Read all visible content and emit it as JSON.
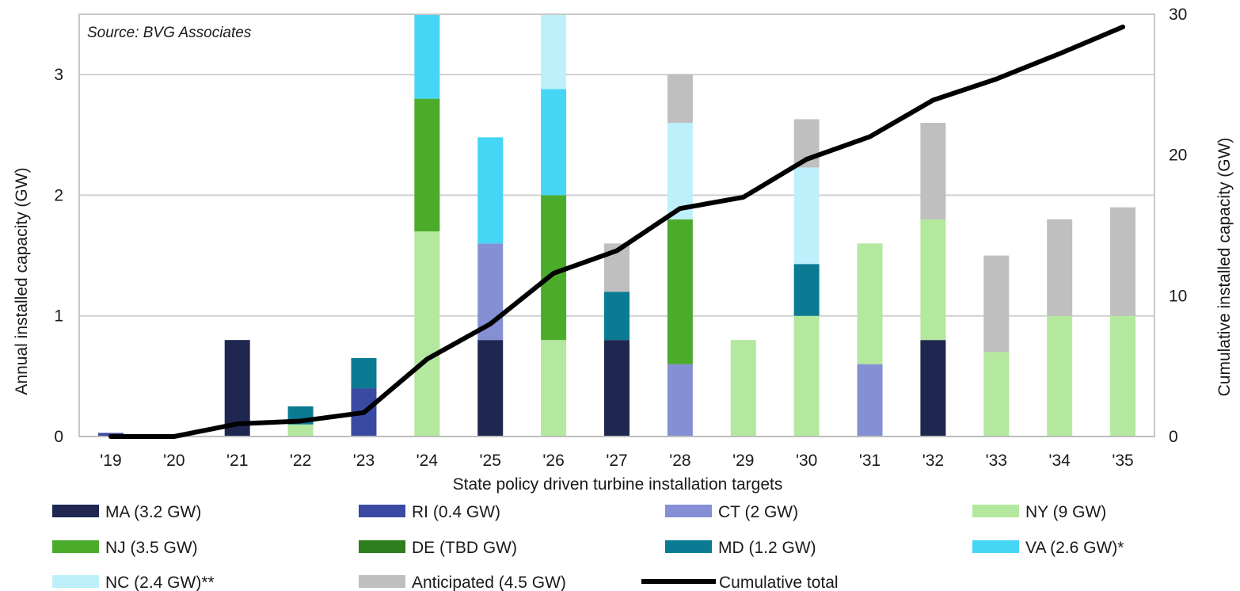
{
  "chart_data": {
    "type": "bar",
    "stacked": true,
    "source_note": "Source: BVG Associates",
    "xlabel": "State policy driven turbine installation  targets",
    "ylabel": "Annual installed capacity (GW)",
    "y2label": "Cumulative  installed  capacity (GW)",
    "ylim": [
      0,
      3.5
    ],
    "y_ticks": [
      "0",
      "1",
      "2",
      "3"
    ],
    "y2lim": [
      0,
      30
    ],
    "y2_ticks": [
      "0",
      "10",
      "20",
      "30"
    ],
    "grid": true,
    "categories": [
      "'19",
      "'20",
      "'21",
      "'22",
      "'23",
      "'24",
      "'25",
      "'26",
      "'27",
      "'28",
      "'29",
      "'30",
      "'31",
      "'32",
      "'33",
      "'34",
      "'35"
    ],
    "series": [
      {
        "name": "MA (3.2 GW)",
        "color": "#1f2750",
        "values": [
          0,
          0,
          0.8,
          0,
          0,
          0,
          0.8,
          0,
          0.8,
          0,
          0,
          0,
          0,
          0.8,
          0,
          0,
          0
        ]
      },
      {
        "name": "RI (0.4 GW)",
        "color": "#3a4aa3",
        "values": [
          0.03,
          0,
          0,
          0,
          0.4,
          0,
          0,
          0,
          0,
          0,
          0,
          0,
          0,
          0,
          0,
          0,
          0
        ]
      },
      {
        "name": "CT (2 GW)",
        "color": "#8490d3",
        "values": [
          0,
          0,
          0,
          0,
          0,
          0,
          0.8,
          0,
          0,
          0.6,
          0,
          0,
          0.6,
          0,
          0,
          0,
          0
        ]
      },
      {
        "name": "NY (9 GW)",
        "color": "#b3e89e",
        "values": [
          0,
          0,
          0,
          0.1,
          0,
          1.7,
          0,
          0.8,
          0,
          0,
          0.8,
          1.0,
          1.0,
          1.0,
          0.7,
          1.0,
          1.0
        ]
      },
      {
        "name": "NJ (3.5 GW)",
        "color": "#4bab2b",
        "values": [
          0,
          0,
          0,
          0,
          0,
          1.1,
          0,
          1.2,
          0,
          1.2,
          0,
          0,
          0,
          0,
          0,
          0,
          0
        ]
      },
      {
        "name": "DE (TBD GW)",
        "color": "#2e7d1e",
        "values": [
          0,
          0,
          0,
          0,
          0,
          0,
          0,
          0,
          0,
          0,
          0,
          0,
          0,
          0,
          0,
          0,
          0
        ]
      },
      {
        "name": "MD (1.2 GW)",
        "color": "#0a7b93",
        "values": [
          0,
          0,
          0,
          0.15,
          0.25,
          0,
          0,
          0,
          0.4,
          0,
          0,
          0.43,
          0,
          0,
          0,
          0,
          0
        ]
      },
      {
        "name": "VA (2.6 GW)*",
        "color": "#45d6f6",
        "values": [
          0,
          0,
          0,
          0,
          0,
          0.8,
          0.88,
          0.88,
          0,
          0,
          0,
          0,
          0,
          0,
          0,
          0,
          0
        ]
      },
      {
        "name": "NC (2.4 GW)**",
        "color": "#bdf0fb",
        "values": [
          0,
          0,
          0,
          0,
          0,
          0,
          0,
          0.82,
          0,
          0.8,
          0,
          0.8,
          0,
          0,
          0,
          0,
          0
        ]
      },
      {
        "name": "Anticipated (4.5 GW)",
        "color": "#bfbfbf",
        "values": [
          0,
          0,
          0,
          0,
          0,
          0,
          0,
          0,
          0.4,
          0.4,
          0,
          0.4,
          0,
          0.8,
          0.8,
          0.8,
          0.9
        ]
      }
    ],
    "line_series": {
      "name": "Cumulative total",
      "color": "#000000",
      "axis": "secondary",
      "values": [
        0,
        0,
        0.9,
        1.1,
        1.7,
        5.5,
        8.0,
        11.6,
        13.2,
        16.2,
        17.0,
        19.7,
        21.3,
        23.9,
        25.4,
        27.2,
        29.1
      ]
    },
    "legend_position": "bottom"
  }
}
